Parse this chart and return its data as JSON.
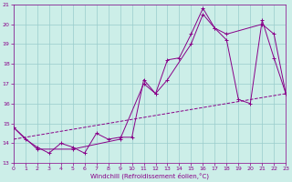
{
  "xlabel": "Windchill (Refroidissement éolien,°C)",
  "bg_color": "#cceee8",
  "grid_color": "#99cccc",
  "line_color": "#880088",
  "xlim": [
    0,
    23
  ],
  "ylim": [
    13,
    21
  ],
  "line1_x": [
    0,
    1,
    2,
    3,
    4,
    5,
    6,
    7,
    8,
    9,
    10,
    11,
    12,
    13,
    14,
    15,
    16,
    17,
    18,
    19,
    20,
    21,
    22,
    23
  ],
  "line1_y": [
    14.8,
    14.2,
    13.8,
    13.5,
    14.0,
    13.8,
    13.5,
    14.5,
    14.2,
    14.3,
    14.3,
    17.2,
    16.5,
    18.2,
    18.3,
    19.5,
    20.8,
    19.8,
    19.2,
    16.2,
    16.0,
    20.2,
    18.3,
    16.5
  ],
  "line2_x": [
    0,
    2,
    5,
    9,
    11,
    12,
    13,
    15,
    16,
    17,
    18,
    21,
    22,
    23
  ],
  "line2_y": [
    14.8,
    13.7,
    13.7,
    14.2,
    17.0,
    16.5,
    17.2,
    19.0,
    20.5,
    19.8,
    19.5,
    20.0,
    19.5,
    16.5
  ],
  "line3_x": [
    0,
    23
  ],
  "line3_y": [
    14.2,
    16.5
  ]
}
